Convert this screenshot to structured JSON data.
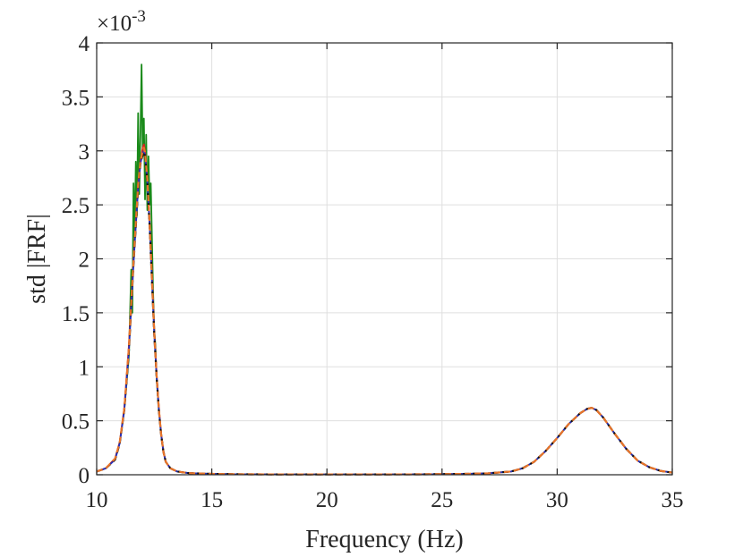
{
  "chart_data": {
    "type": "line",
    "xlabel": "Frequency (Hz)",
    "ylabel": "std |FRF|",
    "exponent": {
      "base": "×10",
      "power": "-3"
    },
    "xlim": [
      10,
      35
    ],
    "ylim": [
      0,
      4
    ],
    "xticks": [
      10,
      15,
      20,
      25,
      30,
      35
    ],
    "xtick_labels": [
      "10",
      "15",
      "20",
      "25",
      "30",
      "35"
    ],
    "yticks": [
      0,
      0.5,
      1,
      1.5,
      2,
      2.5,
      3,
      3.5,
      4
    ],
    "ytick_labels": [
      "0",
      "0.5",
      "1",
      "1.5",
      "2",
      "2.5",
      "3",
      "3.5",
      "4"
    ],
    "grid": true,
    "legend": "none",
    "x_scale": 0.001,
    "series": [
      {
        "color": "#1a8a1a",
        "style": "solid",
        "x": [
          10,
          10.4,
          10.8,
          11.0,
          11.2,
          11.4,
          11.5,
          11.55,
          11.6,
          11.65,
          11.7,
          11.75,
          11.8,
          11.85,
          11.9,
          11.95,
          12.0,
          12.05,
          12.1,
          12.15,
          12.2,
          12.25,
          12.3,
          12.35,
          12.4,
          12.45,
          12.5,
          12.55,
          12.6,
          12.7,
          12.8,
          12.9,
          13.0,
          13.2,
          13.5,
          14,
          15,
          16,
          18,
          20,
          22,
          24,
          26,
          27,
          28,
          28.5,
          29,
          29.5,
          30,
          30.5,
          31,
          31.3,
          31.5,
          31.7,
          32,
          32.5,
          33,
          33.5,
          34,
          34.5,
          35
        ],
        "y": [
          0.03,
          0.06,
          0.15,
          0.3,
          0.6,
          1.1,
          1.9,
          1.5,
          2.7,
          2.2,
          2.9,
          2.4,
          3.35,
          2.6,
          3.15,
          3.8,
          2.95,
          3.3,
          2.55,
          3.15,
          2.45,
          2.95,
          2.5,
          2.7,
          2.2,
          1.7,
          1.35,
          1.2,
          0.9,
          0.6,
          0.38,
          0.22,
          0.12,
          0.06,
          0.03,
          0.015,
          0.008,
          0.005,
          0.003,
          0.003,
          0.003,
          0.004,
          0.008,
          0.013,
          0.03,
          0.06,
          0.12,
          0.22,
          0.34,
          0.47,
          0.57,
          0.61,
          0.62,
          0.6,
          0.53,
          0.38,
          0.24,
          0.13,
          0.07,
          0.035,
          0.02
        ]
      },
      {
        "color": "#e02020",
        "style": "solid",
        "x": [
          10,
          10.4,
          10.8,
          11.0,
          11.2,
          11.4,
          11.6,
          11.8,
          11.9,
          12.0,
          12.05,
          12.1,
          12.2,
          12.3,
          12.4,
          12.5,
          12.6,
          12.7,
          12.8,
          12.9,
          13.0,
          13.2,
          13.5,
          14,
          15,
          16,
          18,
          20,
          22,
          24,
          26,
          27,
          28,
          28.5,
          29,
          29.5,
          30,
          30.5,
          31,
          31.3,
          31.5,
          31.7,
          32,
          32.5,
          33,
          33.5,
          34,
          34.5,
          35
        ],
        "y": [
          0.03,
          0.06,
          0.15,
          0.3,
          0.62,
          1.2,
          2.0,
          2.7,
          2.9,
          3.03,
          3.06,
          3.0,
          2.75,
          2.35,
          1.85,
          1.35,
          0.95,
          0.62,
          0.38,
          0.22,
          0.12,
          0.06,
          0.03,
          0.015,
          0.008,
          0.005,
          0.003,
          0.003,
          0.003,
          0.004,
          0.008,
          0.013,
          0.03,
          0.06,
          0.12,
          0.22,
          0.34,
          0.47,
          0.57,
          0.61,
          0.62,
          0.6,
          0.53,
          0.38,
          0.24,
          0.13,
          0.07,
          0.035,
          0.02
        ]
      },
      {
        "color": "#2030c0",
        "style": "solid",
        "x": [
          10,
          10.4,
          10.8,
          11.0,
          11.2,
          11.4,
          11.6,
          11.8,
          11.9,
          12.0,
          12.05,
          12.1,
          12.2,
          12.3,
          12.4,
          12.5,
          12.6,
          12.7,
          12.8,
          12.9,
          13.0,
          13.2,
          13.5,
          14,
          15,
          16,
          18,
          20,
          22,
          24,
          26,
          27,
          28,
          28.5,
          29,
          29.5,
          30,
          30.5,
          31,
          31.3,
          31.5,
          31.7,
          32,
          32.5,
          33,
          33.5,
          34,
          34.5,
          35
        ],
        "y": [
          0.03,
          0.06,
          0.14,
          0.29,
          0.6,
          1.15,
          1.95,
          2.65,
          2.88,
          2.98,
          3.0,
          2.96,
          2.72,
          2.3,
          1.8,
          1.3,
          0.92,
          0.6,
          0.37,
          0.21,
          0.12,
          0.06,
          0.03,
          0.015,
          0.008,
          0.005,
          0.003,
          0.003,
          0.003,
          0.004,
          0.008,
          0.013,
          0.03,
          0.06,
          0.12,
          0.22,
          0.34,
          0.47,
          0.57,
          0.61,
          0.62,
          0.6,
          0.53,
          0.38,
          0.24,
          0.13,
          0.07,
          0.035,
          0.02
        ]
      },
      {
        "color": "#111111",
        "style": "dashed",
        "x": [
          10,
          10.4,
          10.8,
          11.0,
          11.2,
          11.4,
          11.6,
          11.8,
          11.9,
          12.0,
          12.05,
          12.1,
          12.2,
          12.3,
          12.4,
          12.5,
          12.6,
          12.7,
          12.8,
          12.9,
          13.0,
          13.2,
          13.5,
          14,
          15,
          16,
          18,
          20,
          22,
          24,
          26,
          27,
          28,
          28.5,
          29,
          29.5,
          30,
          30.5,
          31,
          31.3,
          31.5,
          31.7,
          32,
          32.5,
          33,
          33.5,
          34,
          34.5,
          35
        ],
        "y": [
          0.03,
          0.06,
          0.14,
          0.29,
          0.6,
          1.15,
          1.95,
          2.65,
          2.88,
          2.97,
          2.99,
          2.95,
          2.7,
          2.3,
          1.8,
          1.3,
          0.92,
          0.6,
          0.37,
          0.21,
          0.12,
          0.06,
          0.03,
          0.015,
          0.008,
          0.005,
          0.003,
          0.003,
          0.003,
          0.004,
          0.008,
          0.013,
          0.03,
          0.06,
          0.12,
          0.22,
          0.34,
          0.47,
          0.57,
          0.61,
          0.62,
          0.6,
          0.53,
          0.38,
          0.24,
          0.13,
          0.07,
          0.035,
          0.02
        ]
      },
      {
        "color": "#e8742a",
        "style": "dashed",
        "x": [
          10,
          10.4,
          10.8,
          11.0,
          11.2,
          11.4,
          11.6,
          11.8,
          11.9,
          12.0,
          12.05,
          12.1,
          12.2,
          12.3,
          12.4,
          12.5,
          12.6,
          12.7,
          12.8,
          12.9,
          13.0,
          13.2,
          13.5,
          14,
          15,
          16,
          18,
          20,
          22,
          24,
          26,
          27,
          28,
          28.5,
          29,
          29.5,
          30,
          30.5,
          31,
          31.3,
          31.5,
          31.7,
          32,
          32.5,
          33,
          33.5,
          34,
          34.5,
          35
        ],
        "y": [
          0.03,
          0.06,
          0.15,
          0.3,
          0.61,
          1.18,
          1.98,
          2.68,
          2.9,
          3.0,
          3.03,
          2.98,
          2.73,
          2.32,
          1.82,
          1.32,
          0.93,
          0.61,
          0.37,
          0.21,
          0.12,
          0.06,
          0.03,
          0.015,
          0.008,
          0.005,
          0.003,
          0.003,
          0.003,
          0.004,
          0.008,
          0.013,
          0.03,
          0.06,
          0.12,
          0.22,
          0.34,
          0.47,
          0.57,
          0.61,
          0.62,
          0.6,
          0.53,
          0.38,
          0.24,
          0.13,
          0.07,
          0.035,
          0.02
        ]
      }
    ]
  }
}
